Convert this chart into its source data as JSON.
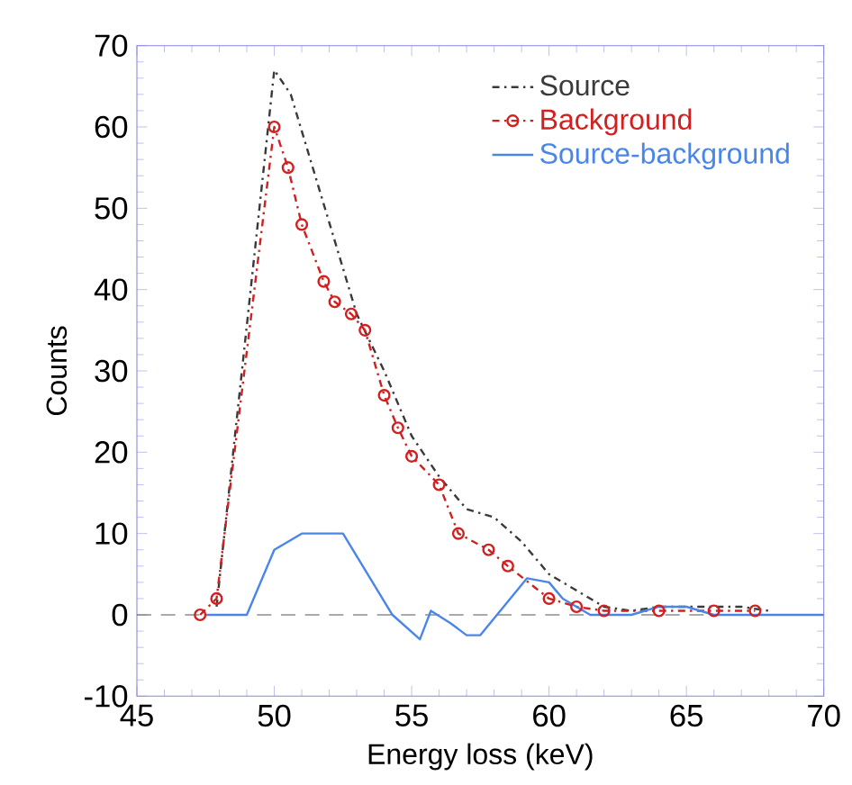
{
  "chart_data": {
    "type": "line",
    "xlabel": "Energy loss (keV)",
    "ylabel": "Counts",
    "xlim": [
      45,
      70
    ],
    "ylim": [
      -10,
      70
    ],
    "xticks": [
      45,
      50,
      55,
      60,
      65,
      70
    ],
    "yticks": [
      -10,
      0,
      10,
      20,
      30,
      40,
      50,
      60,
      70
    ],
    "grid": false,
    "legend": "top right",
    "ref_lines": [
      {
        "axis": "y",
        "value": 0,
        "color": "#555555",
        "line_style": "dashed"
      }
    ],
    "series": [
      {
        "name": "Source",
        "color": "#3a3a3a",
        "line_style": "dashdot",
        "marker": "none",
        "x": [
          47.9,
          50,
          50.6,
          53,
          54,
          55,
          56,
          57,
          58,
          59,
          60,
          61,
          62,
          63,
          64,
          65,
          66,
          67,
          68
        ],
        "values": [
          1,
          67,
          64,
          37,
          30,
          22,
          17,
          13,
          12,
          9,
          5,
          3,
          1,
          0.5,
          1,
          1,
          1,
          1,
          0.5
        ]
      },
      {
        "name": "Background",
        "color": "#d02020",
        "line_style": "dashdot",
        "marker": "circle",
        "x": [
          47.3,
          47.9,
          50,
          50.5,
          51,
          51.8,
          52.2,
          52.8,
          53.3,
          54,
          54.5,
          55,
          56,
          56.7,
          57.8,
          58.5,
          60,
          61,
          62,
          64,
          66,
          67.5
        ],
        "values": [
          0,
          2,
          60,
          55,
          48,
          41,
          38.5,
          37,
          35,
          27,
          23,
          19.5,
          16,
          10,
          8,
          6,
          2,
          1,
          0.5,
          0.5,
          0.5,
          0.5
        ]
      },
      {
        "name": "Source-background",
        "color": "#4a86e8",
        "line_style": "solid",
        "marker": "none",
        "x": [
          47.5,
          49,
          50,
          51,
          52.5,
          54.3,
          55.3,
          55.7,
          56.4,
          57,
          57.5,
          59.2,
          60,
          60.5,
          61.5,
          63,
          64,
          65,
          66,
          68,
          70
        ],
        "values": [
          0,
          0,
          8,
          10,
          10,
          0,
          -3,
          0.5,
          -1,
          -2.5,
          -2.5,
          4.5,
          4,
          2,
          0,
          0,
          1,
          1,
          0,
          0,
          0
        ]
      }
    ]
  }
}
